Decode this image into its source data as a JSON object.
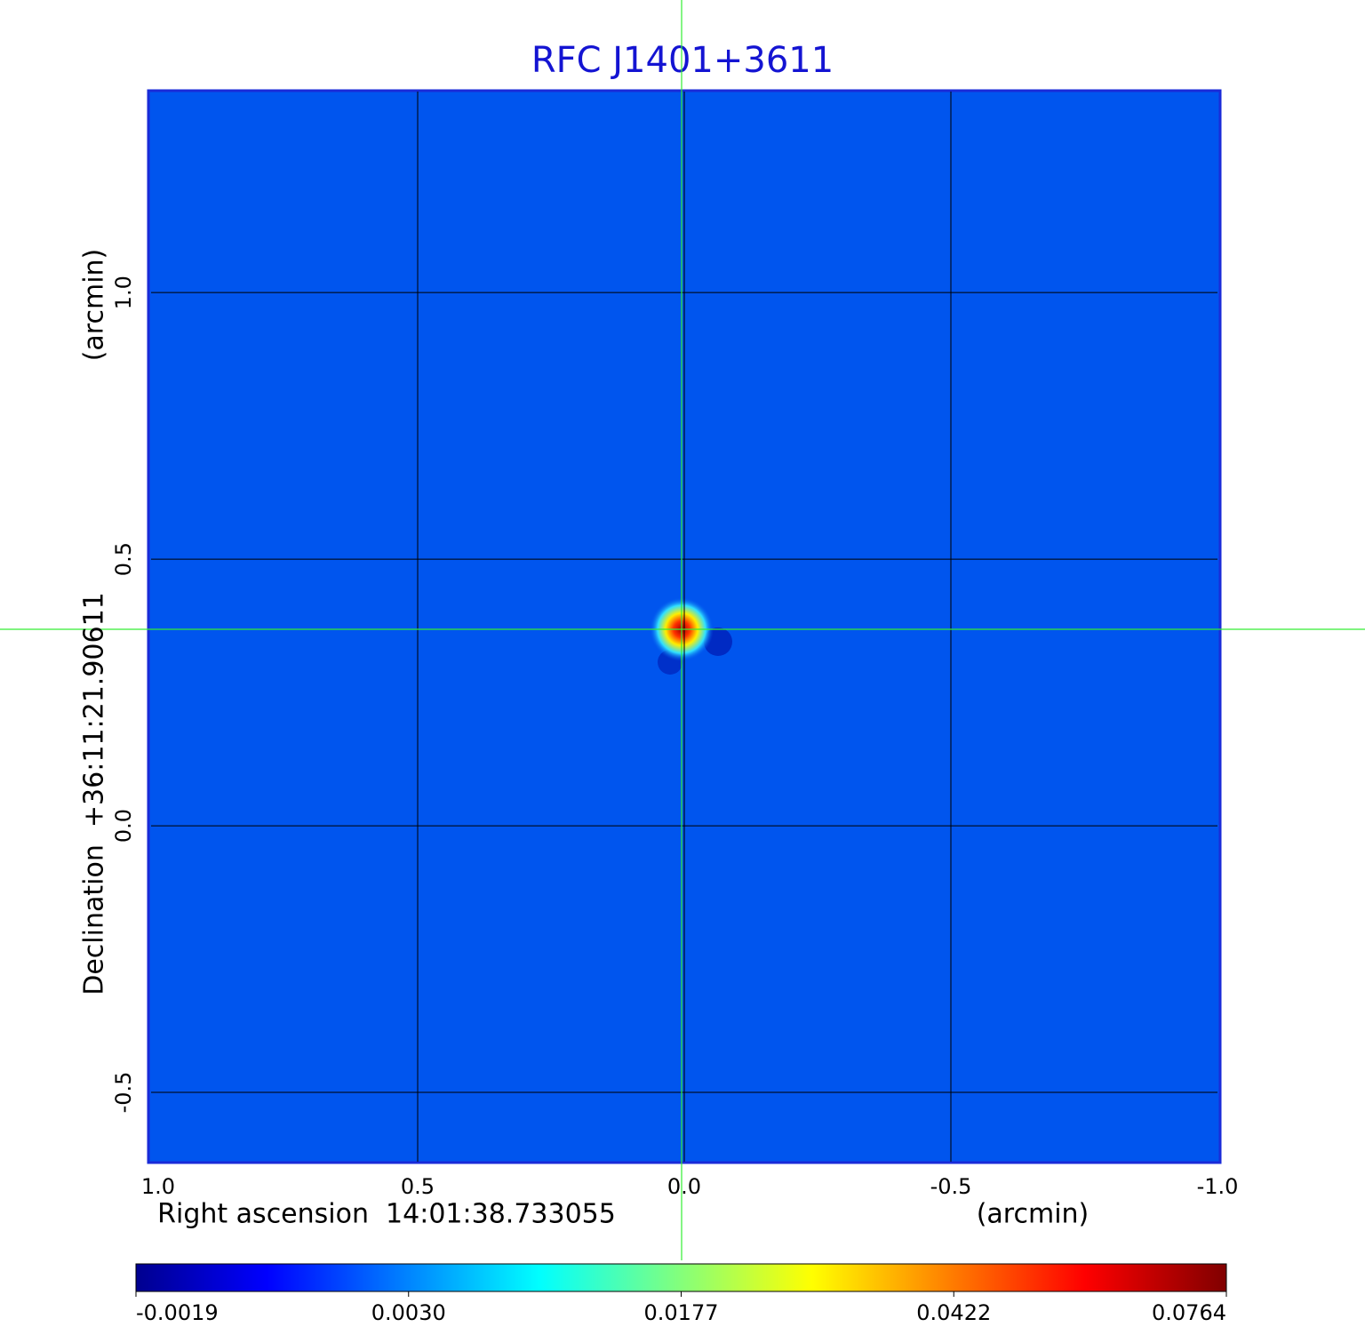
{
  "chart_data": {
    "type": "image",
    "title": "RFC J1401+3611",
    "x_label": "Right ascension  14:01:38.733055",
    "x_unit": "(arcmin)",
    "y_label": "Declination  +36:11:21.90611",
    "y_unit": "(arcmin)",
    "xlim": [
      1.0,
      -1.0
    ],
    "xticks": [
      {
        "value": 1,
        "label": "1.0"
      },
      0.5,
      {
        "value": 0,
        "label": "0.0"
      },
      -0.5,
      {
        "value": -1,
        "label": "-1.0"
      }
    ],
    "ylim": [
      -0.63,
      1.377
    ],
    "yticks": [
      -0.5,
      {
        "value": 0,
        "label": "0.0"
      },
      0.5,
      {
        "value": 1,
        "label": "1.0"
      }
    ],
    "grid": true,
    "colorbar_ticks": [
      -0.0019,
      {
        "value": 0.003,
        "label": "0.0030"
      },
      0.0177,
      0.0422,
      0.0764
    ]
  }
}
